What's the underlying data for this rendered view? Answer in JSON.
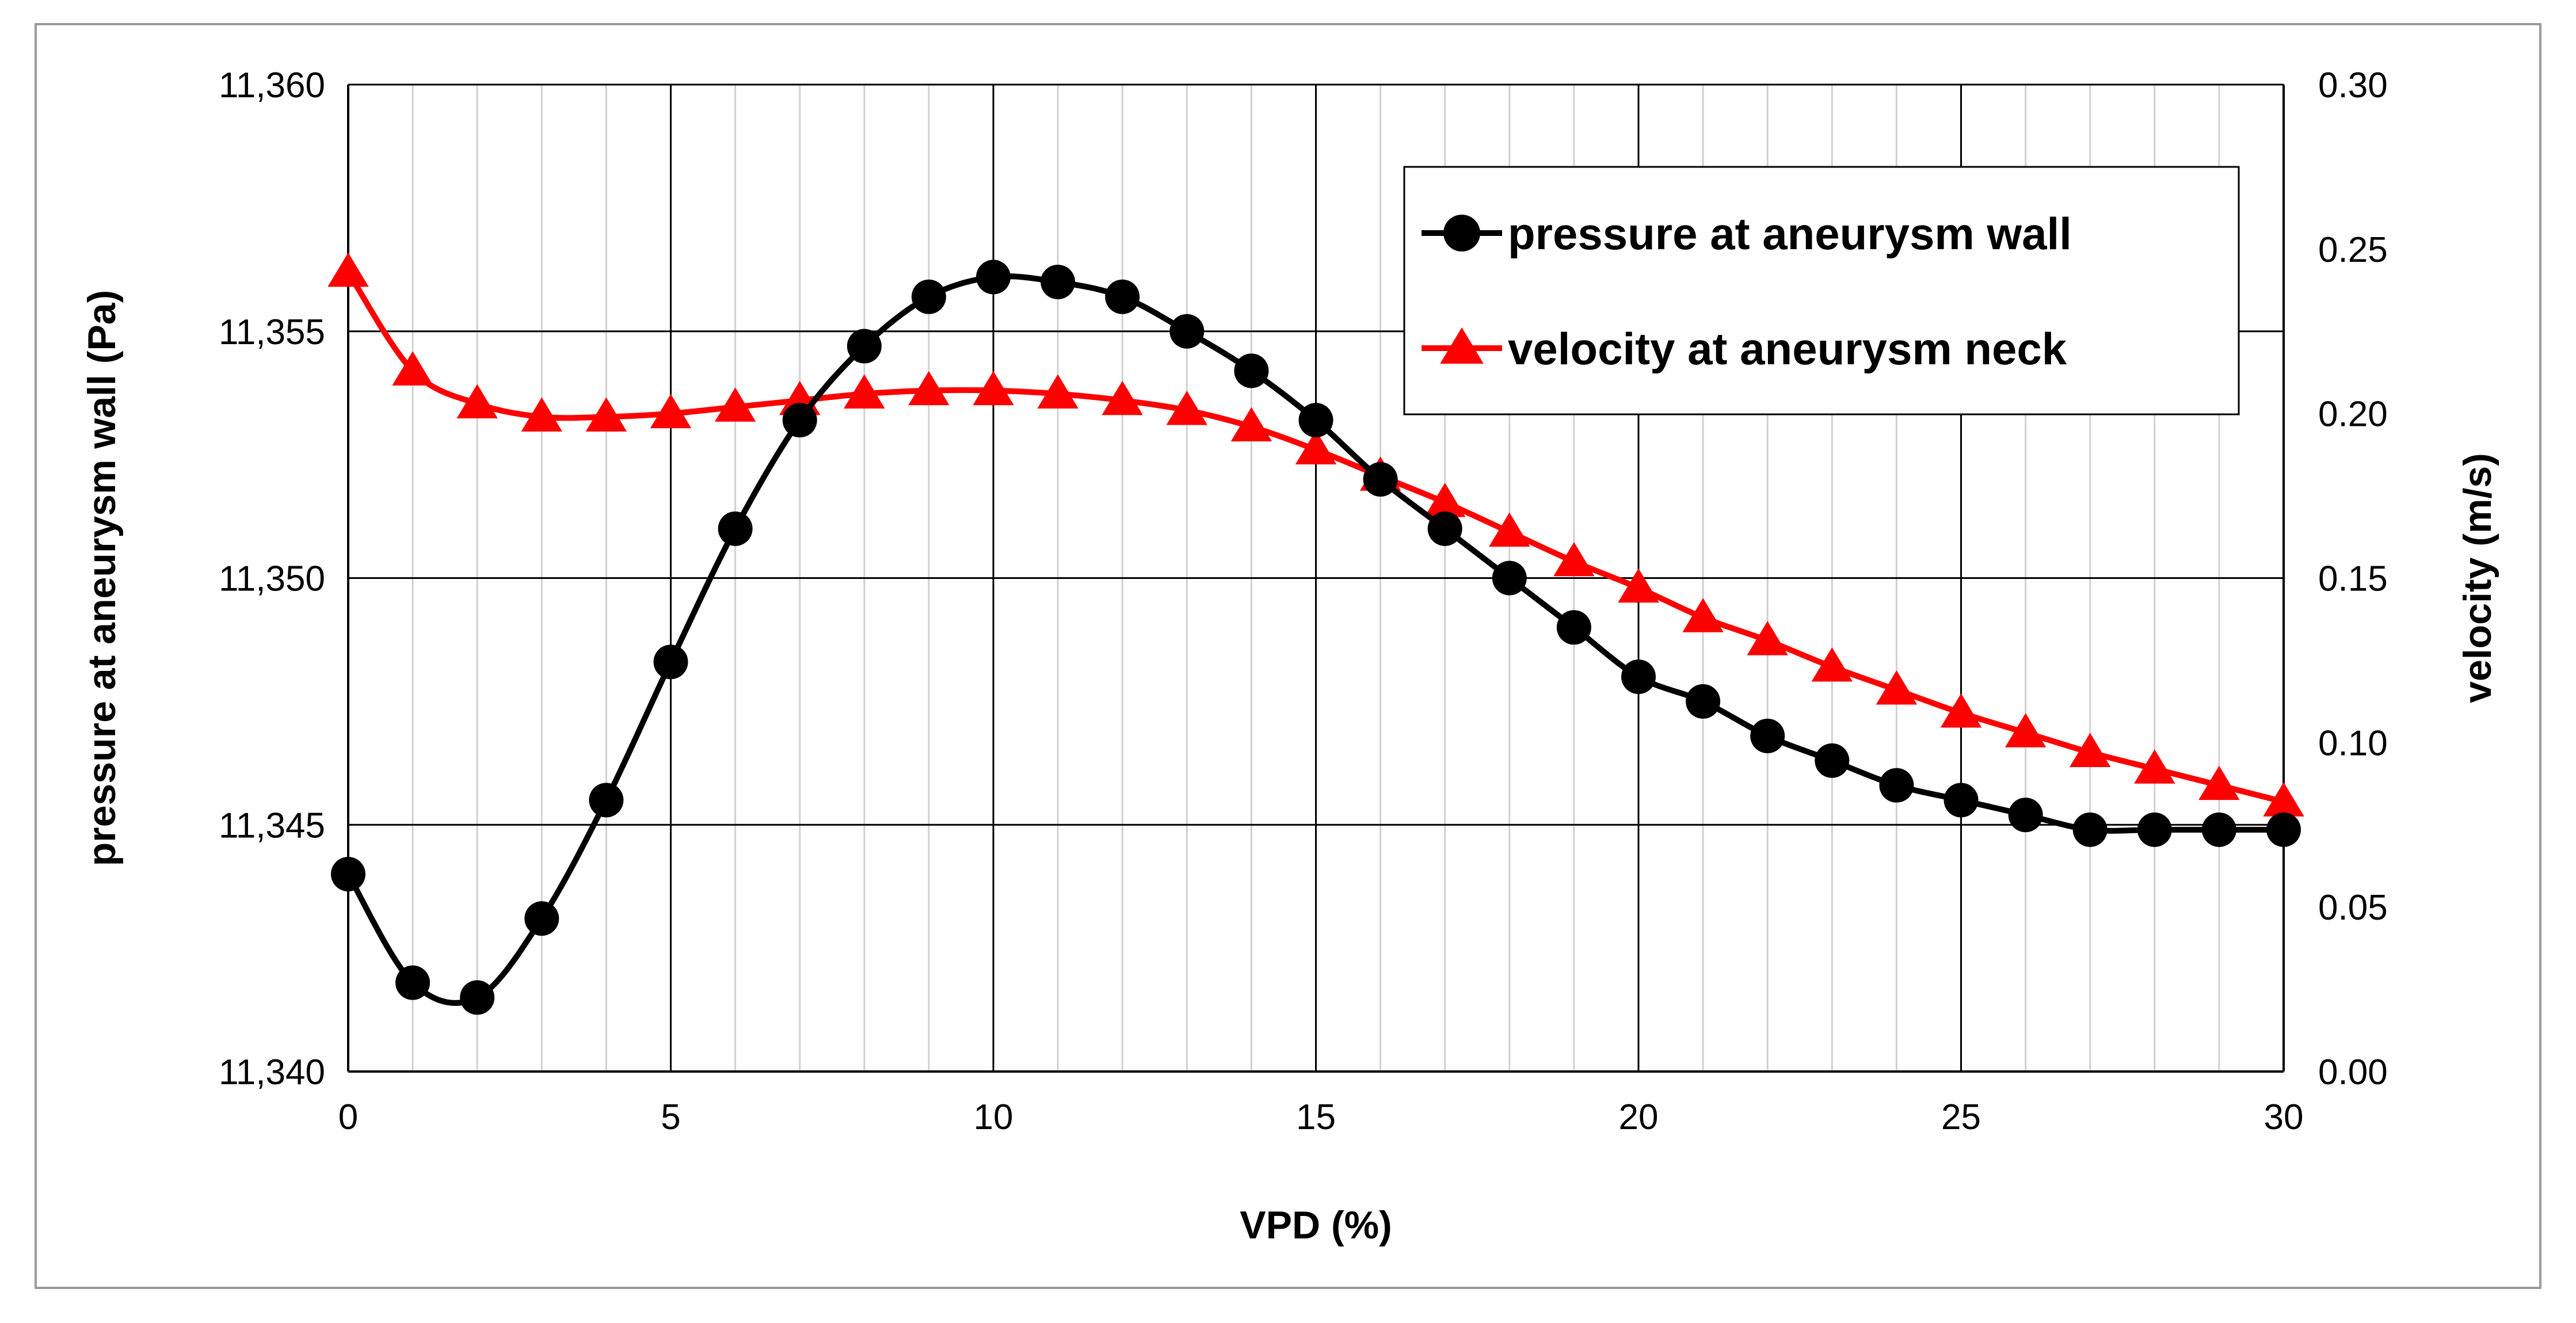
{
  "chart_data": {
    "type": "line",
    "xlabel": "VPD (%)",
    "ylabel_left": "pressure at aneurysm wall (Pa)",
    "ylabel_right": "velocity (m/s)",
    "xlim": [
      0,
      30
    ],
    "ylim_left": [
      11340,
      11360
    ],
    "ylim_right": [
      0,
      0.3
    ],
    "x_ticks": [
      0,
      5,
      10,
      15,
      20,
      25,
      30
    ],
    "x_tick_labels": [
      "0",
      "5",
      "10",
      "15",
      "20",
      "25",
      "30"
    ],
    "y_left_ticks": [
      11340,
      11345,
      11350,
      11355,
      11360
    ],
    "y_left_tick_labels": [
      "11,340",
      "11,345",
      "11,350",
      "11,355",
      "11,360"
    ],
    "y_right_ticks": [
      0,
      0.05,
      0.1,
      0.15,
      0.2,
      0.25,
      0.3
    ],
    "y_right_tick_labels": [
      "0.00",
      "0.05",
      "0.10",
      "0.15",
      "0.20",
      "0.25",
      "0.30"
    ],
    "grid": true,
    "legend_position": "top-right",
    "x": [
      0,
      1,
      2,
      3,
      4,
      5,
      6,
      7,
      8,
      9,
      10,
      11,
      12,
      13,
      14,
      15,
      16,
      17,
      18,
      19,
      20,
      21,
      22,
      23,
      24,
      25,
      26,
      27,
      28,
      29,
      30
    ],
    "series": [
      {
        "name": "pressure at aneurysm wall",
        "axis": "left",
        "marker": "circle",
        "color": "#000000",
        "values": [
          11344.0,
          11341.8,
          11341.5,
          11343.1,
          11345.5,
          11348.3,
          11351.0,
          11353.2,
          11354.7,
          11355.7,
          11356.1,
          11356.0,
          11355.7,
          11355.0,
          11354.2,
          11353.2,
          11352.0,
          11351.0,
          11350.0,
          11349.0,
          11348.0,
          11347.5,
          11346.8,
          11346.3,
          11345.8,
          11345.5,
          11345.2,
          11344.9,
          11344.9,
          11344.9,
          11344.9
        ]
      },
      {
        "name": "velocity at aneurysm neck",
        "axis": "right",
        "marker": "triangle",
        "color": "#ff0000",
        "values": [
          0.243,
          0.213,
          0.203,
          0.199,
          0.199,
          0.2,
          0.202,
          0.204,
          0.206,
          0.207,
          0.207,
          0.206,
          0.204,
          0.201,
          0.196,
          0.189,
          0.181,
          0.173,
          0.164,
          0.155,
          0.147,
          0.138,
          0.131,
          0.123,
          0.116,
          0.109,
          0.103,
          0.097,
          0.092,
          0.087,
          0.082
        ]
      }
    ]
  }
}
